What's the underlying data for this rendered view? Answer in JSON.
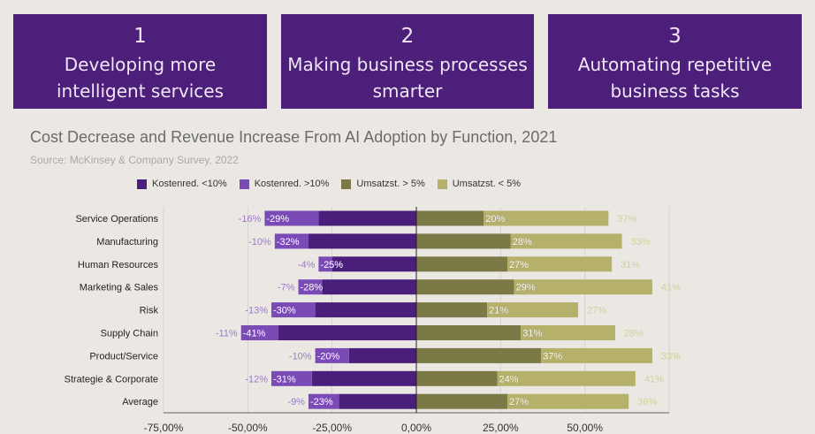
{
  "boxes": [
    {
      "number": "1",
      "text_line1": "Developing more",
      "text_line2": "intelligent services"
    },
    {
      "number": "2",
      "text_line1": "Making business processes",
      "text_line2": "smarter"
    },
    {
      "number": "3",
      "text_line1": "Automating repetitive",
      "text_line2": "business tasks"
    }
  ],
  "colors": {
    "background": "#ebe8e4",
    "box": "#4b1f7a",
    "cost_under10": "#4a1f7c",
    "cost_over10": "#7a4bb6",
    "rev_over5": "#7b7a46",
    "rev_under5": "#b5b16b"
  },
  "chart_data": {
    "type": "bar",
    "orientation": "horizontal-diverging-stacked",
    "title": "Cost Decrease and Revenue Increase From AI Adoption by Function, 2021",
    "subtitle": "Source: McKinsey & Company Survey, 2022",
    "legend": [
      "Kostenred. <10%",
      "Kostenred. >10%",
      "Umsatzst. > 5%",
      "Umsatzst. < 5%"
    ],
    "legend_position": "top",
    "categories": [
      "Service Operations",
      "Manufacturing",
      "Human Resources",
      "Marketing & Sales",
      "Risk",
      "Supply Chain",
      "Product/Service",
      "Strategie & Corporate",
      "Average"
    ],
    "series": [
      {
        "name": "Kostenred. <10%",
        "values": [
          -29,
          -32,
          -25,
          -28,
          -30,
          -41,
          -20,
          -31,
          -23
        ]
      },
      {
        "name": "Kostenred. >10%",
        "values": [
          -16,
          -10,
          -4,
          -7,
          -13,
          -11,
          -10,
          -12,
          -9
        ]
      },
      {
        "name": "Umsatzst. > 5%",
        "values": [
          20,
          28,
          27,
          29,
          21,
          31,
          37,
          24,
          27
        ]
      },
      {
        "name": "Umsatzst. < 5%",
        "values": [
          37,
          33,
          31,
          41,
          27,
          28,
          33,
          41,
          36
        ]
      }
    ],
    "xlim": [
      -75,
      75
    ],
    "xticks": [
      -75,
      -50,
      -25,
      0,
      25,
      50
    ],
    "xtick_labels": [
      "-75,00%",
      "-50,00%",
      "-25,00%",
      "0,00%",
      "25,00%",
      "50,00%"
    ],
    "grid": true,
    "xlabel": "",
    "ylabel": ""
  }
}
